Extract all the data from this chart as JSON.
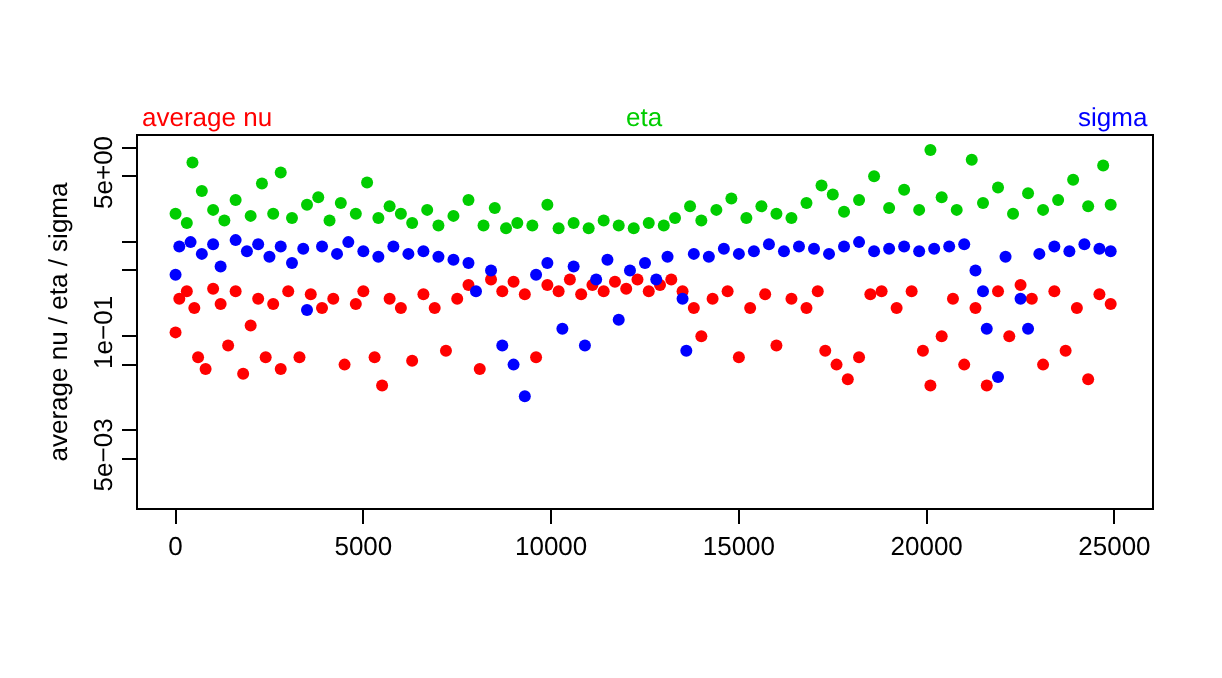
{
  "chart_data": {
    "type": "scatter",
    "ylabel": "average nu / eta / sigma",
    "log": "y",
    "marker": "circle",
    "xlim": [
      -1000,
      26000
    ],
    "xticks": [
      0,
      5000,
      10000,
      15000,
      20000,
      25000
    ],
    "ylim": [
      0.0015,
      13.4
    ],
    "yticks": [
      {
        "value": 10,
        "label": null
      },
      {
        "value": 5,
        "label": "5e+00"
      },
      {
        "value": 1,
        "label": null
      },
      {
        "value": 0.5,
        "label": null
      },
      {
        "value": 0.1,
        "label": "1e−01"
      },
      {
        "value": 0.05,
        "label": null
      },
      {
        "value": 0.01,
        "label": null
      },
      {
        "value": 0.005,
        "label": "5e−03"
      }
    ],
    "series": [
      {
        "name": "average nu",
        "color": "#ff0000",
        "x": [
          0,
          100,
          300,
          500,
          600,
          800,
          1000,
          1200,
          1400,
          1600,
          1800,
          2000,
          2200,
          2400,
          2600,
          2800,
          3000,
          3300,
          3600,
          3900,
          4200,
          4500,
          4800,
          5000,
          5300,
          5500,
          5700,
          6000,
          6300,
          6600,
          6900,
          7200,
          7500,
          7800,
          8100,
          8400,
          8700,
          9000,
          9300,
          9600,
          9900,
          10200,
          10500,
          10800,
          11100,
          11400,
          11700,
          12000,
          12300,
          12600,
          12900,
          13200,
          13500,
          13800,
          14000,
          14300,
          14700,
          15000,
          15300,
          15700,
          16000,
          16400,
          16800,
          17100,
          17300,
          17600,
          17900,
          18200,
          18500,
          18800,
          19200,
          19600,
          19900,
          20100,
          20400,
          20700,
          21000,
          21300,
          21600,
          21900,
          22200,
          22500,
          22800,
          23100,
          23400,
          23700,
          24000,
          24300,
          24600,
          24900
        ],
        "values": [
          0.11,
          0.25,
          0.3,
          0.2,
          0.06,
          0.045,
          0.32,
          0.22,
          0.08,
          0.3,
          0.04,
          0.13,
          0.25,
          0.06,
          0.22,
          0.045,
          0.3,
          0.06,
          0.28,
          0.2,
          0.25,
          0.05,
          0.22,
          0.3,
          0.06,
          0.03,
          0.25,
          0.2,
          0.055,
          0.28,
          0.2,
          0.07,
          0.25,
          0.35,
          0.045,
          0.4,
          0.3,
          0.38,
          0.28,
          0.06,
          0.35,
          0.3,
          0.4,
          0.28,
          0.35,
          0.3,
          0.38,
          0.32,
          0.4,
          0.3,
          0.35,
          0.4,
          0.3,
          0.2,
          0.1,
          0.25,
          0.3,
          0.06,
          0.2,
          0.28,
          0.08,
          0.25,
          0.2,
          0.3,
          0.07,
          0.05,
          0.035,
          0.06,
          0.28,
          0.3,
          0.2,
          0.3,
          0.07,
          0.03,
          0.1,
          0.25,
          0.05,
          0.2,
          0.03,
          0.3,
          0.1,
          0.35,
          0.25,
          0.05,
          0.3,
          0.07,
          0.2,
          0.035,
          0.28,
          0.22
        ]
      },
      {
        "name": "eta",
        "color": "#00cd00",
        "x": [
          0,
          300,
          450,
          700,
          1000,
          1300,
          1600,
          2000,
          2300,
          2600,
          2800,
          3100,
          3500,
          3800,
          4100,
          4400,
          4800,
          5100,
          5400,
          5700,
          6000,
          6300,
          6700,
          7000,
          7400,
          7800,
          8200,
          8500,
          8800,
          9100,
          9500,
          9900,
          10200,
          10600,
          11000,
          11400,
          11800,
          12200,
          12600,
          13000,
          13300,
          13700,
          14000,
          14400,
          14800,
          15200,
          15600,
          16000,
          16400,
          16800,
          17200,
          17500,
          17800,
          18200,
          18600,
          19000,
          19400,
          19800,
          20100,
          20400,
          20800,
          21200,
          21500,
          21900,
          22300,
          22700,
          23100,
          23500,
          23900,
          24300,
          24700,
          24900
        ],
        "values": [
          2.0,
          1.6,
          7.0,
          3.5,
          2.2,
          1.7,
          2.8,
          1.9,
          4.2,
          2.0,
          5.5,
          1.8,
          2.5,
          3.0,
          1.7,
          2.6,
          2.0,
          4.3,
          1.8,
          2.4,
          2.0,
          1.6,
          2.2,
          1.5,
          1.9,
          2.8,
          1.5,
          2.3,
          1.4,
          1.6,
          1.5,
          2.5,
          1.4,
          1.6,
          1.4,
          1.7,
          1.5,
          1.4,
          1.6,
          1.5,
          1.8,
          2.4,
          1.7,
          2.2,
          2.9,
          1.8,
          2.4,
          2.0,
          1.8,
          2.6,
          4.0,
          3.2,
          2.1,
          2.8,
          5.0,
          2.3,
          3.6,
          2.2,
          9.5,
          3.0,
          2.2,
          7.5,
          2.6,
          3.8,
          2.0,
          3.3,
          2.2,
          2.8,
          4.6,
          2.4,
          6.5,
          2.5
        ]
      },
      {
        "name": "sigma",
        "color": "#0000ff",
        "x": [
          0,
          100,
          400,
          700,
          1000,
          1200,
          1600,
          1900,
          2200,
          2500,
          2800,
          3100,
          3400,
          3500,
          3900,
          4300,
          4600,
          5000,
          5400,
          5800,
          6200,
          6600,
          7000,
          7400,
          7800,
          8000,
          8400,
          8700,
          9000,
          9300,
          9600,
          9900,
          10300,
          10600,
          10900,
          11200,
          11500,
          11800,
          12100,
          12500,
          12800,
          13100,
          13500,
          13600,
          13800,
          14200,
          14600,
          15000,
          15400,
          15800,
          16200,
          16600,
          17000,
          17400,
          17800,
          18200,
          18600,
          19000,
          19400,
          19800,
          20200,
          20600,
          21000,
          21300,
          21500,
          21600,
          21900,
          22100,
          22500,
          22700,
          23000,
          23400,
          23800,
          24200,
          24600,
          24900
        ],
        "values": [
          0.45,
          0.9,
          1.0,
          0.75,
          0.95,
          0.55,
          1.05,
          0.8,
          0.95,
          0.7,
          0.9,
          0.6,
          0.85,
          0.19,
          0.9,
          0.75,
          1.0,
          0.8,
          0.7,
          0.9,
          0.75,
          0.8,
          0.7,
          0.65,
          0.6,
          0.3,
          0.5,
          0.08,
          0.05,
          0.023,
          0.45,
          0.6,
          0.12,
          0.55,
          0.08,
          0.4,
          0.65,
          0.15,
          0.5,
          0.6,
          0.4,
          0.7,
          0.25,
          0.07,
          0.75,
          0.7,
          0.85,
          0.75,
          0.8,
          0.95,
          0.8,
          0.9,
          0.85,
          0.75,
          0.9,
          1.0,
          0.8,
          0.85,
          0.9,
          0.8,
          0.85,
          0.9,
          0.95,
          0.5,
          0.3,
          0.12,
          0.037,
          0.7,
          0.25,
          0.12,
          0.75,
          0.9,
          0.8,
          0.95,
          0.85,
          0.8
        ]
      }
    ]
  }
}
